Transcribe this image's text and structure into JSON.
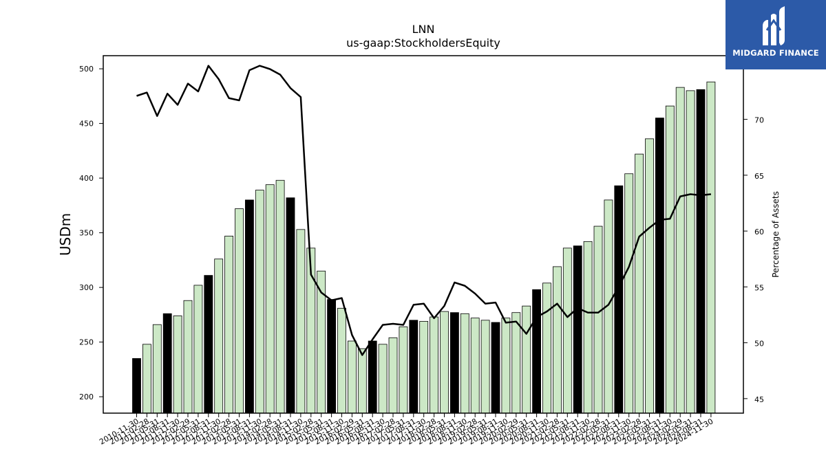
{
  "chart_data": {
    "type": "bar",
    "title": "LNN",
    "subtitle": "us-gaap:StockholdersEquity",
    "ylabel": "USDm",
    "y2label": "Percentage of Assets",
    "ylim": [
      185,
      512
    ],
    "y2lim": [
      43.7,
      75.7
    ],
    "yticks": [
      200,
      250,
      300,
      350,
      400,
      450,
      500
    ],
    "y2ticks": [
      45,
      50,
      55,
      60,
      65,
      70,
      75
    ],
    "categories": [
      "2010-11-30",
      "2011-02-28",
      "2011-05-31",
      "2011-08-31",
      "2011-11-30",
      "2012-02-29",
      "2012-05-31",
      "2012-08-31",
      "2012-11-30",
      "2013-02-28",
      "2013-05-31",
      "2013-08-31",
      "2013-11-30",
      "2014-02-28",
      "2014-05-31",
      "2014-08-31",
      "2014-11-30",
      "2015-02-28",
      "2015-05-31",
      "2015-08-31",
      "2015-11-30",
      "2016-02-29",
      "2016-05-31",
      "2016-08-31",
      "2016-11-30",
      "2017-02-28",
      "2017-05-31",
      "2017-08-31",
      "2017-11-30",
      "2018-02-28",
      "2018-05-31",
      "2018-08-31",
      "2018-11-30",
      "2019-02-28",
      "2019-05-31",
      "2019-08-31",
      "2019-11-30",
      "2020-02-29",
      "2020-05-31",
      "2020-08-31",
      "2020-11-30",
      "2021-02-28",
      "2021-05-31",
      "2021-08-31",
      "2021-11-30",
      "2022-02-28",
      "2022-05-31",
      "2022-08-31",
      "2022-11-30",
      "2023-02-28",
      "2023-05-31",
      "2023-08-31",
      "2023-11-30",
      "2024-02-29",
      "2024-05-31",
      "2024-08-31",
      "2024-11-30"
    ],
    "values": [
      235,
      248,
      266,
      276,
      274,
      288,
      302,
      311,
      326,
      347,
      372,
      380,
      389,
      394,
      398,
      382,
      353,
      336,
      315,
      289,
      281,
      251,
      244,
      251,
      248,
      254,
      264,
      270,
      269,
      273,
      278,
      277,
      276,
      272,
      270,
      268,
      272,
      277,
      283,
      298,
      304,
      319,
      336,
      338,
      342,
      356,
      380,
      393,
      404,
      422,
      436,
      455,
      466,
      483,
      480,
      481,
      488
    ],
    "highlight": [
      true,
      false,
      false,
      true,
      false,
      false,
      false,
      true,
      false,
      false,
      false,
      true,
      false,
      false,
      false,
      true,
      false,
      false,
      false,
      true,
      false,
      false,
      false,
      true,
      false,
      false,
      false,
      true,
      false,
      false,
      false,
      true,
      false,
      false,
      false,
      true,
      false,
      false,
      false,
      true,
      false,
      false,
      false,
      true,
      false,
      false,
      false,
      true,
      false,
      false,
      false,
      true,
      false,
      false,
      false,
      true,
      false
    ],
    "line_values": [
      72.1,
      72.4,
      70.3,
      72.3,
      71.3,
      73.2,
      72.5,
      74.8,
      73.6,
      71.9,
      71.7,
      74.4,
      74.8,
      74.5,
      74.0,
      72.8,
      72.0,
      56.1,
      54.5,
      53.8,
      54.0,
      50.7,
      48.9,
      50.3,
      51.6,
      51.7,
      51.6,
      53.4,
      53.5,
      52.2,
      53.3,
      55.4,
      55.1,
      54.4,
      53.5,
      53.6,
      51.8,
      51.9,
      50.8,
      52.3,
      52.8,
      53.5,
      52.3,
      53.1,
      52.7,
      52.7,
      53.4,
      55.0,
      56.8,
      59.5,
      60.3,
      61.0,
      61.1,
      63.1,
      63.3,
      63.2,
      63.3
    ],
    "colors": {
      "bar": "#cce8c6",
      "bar_highlight": "#000000",
      "line": "#000000"
    },
    "grid": false
  },
  "logo": {
    "text": "MIDGARD FINANCE"
  }
}
